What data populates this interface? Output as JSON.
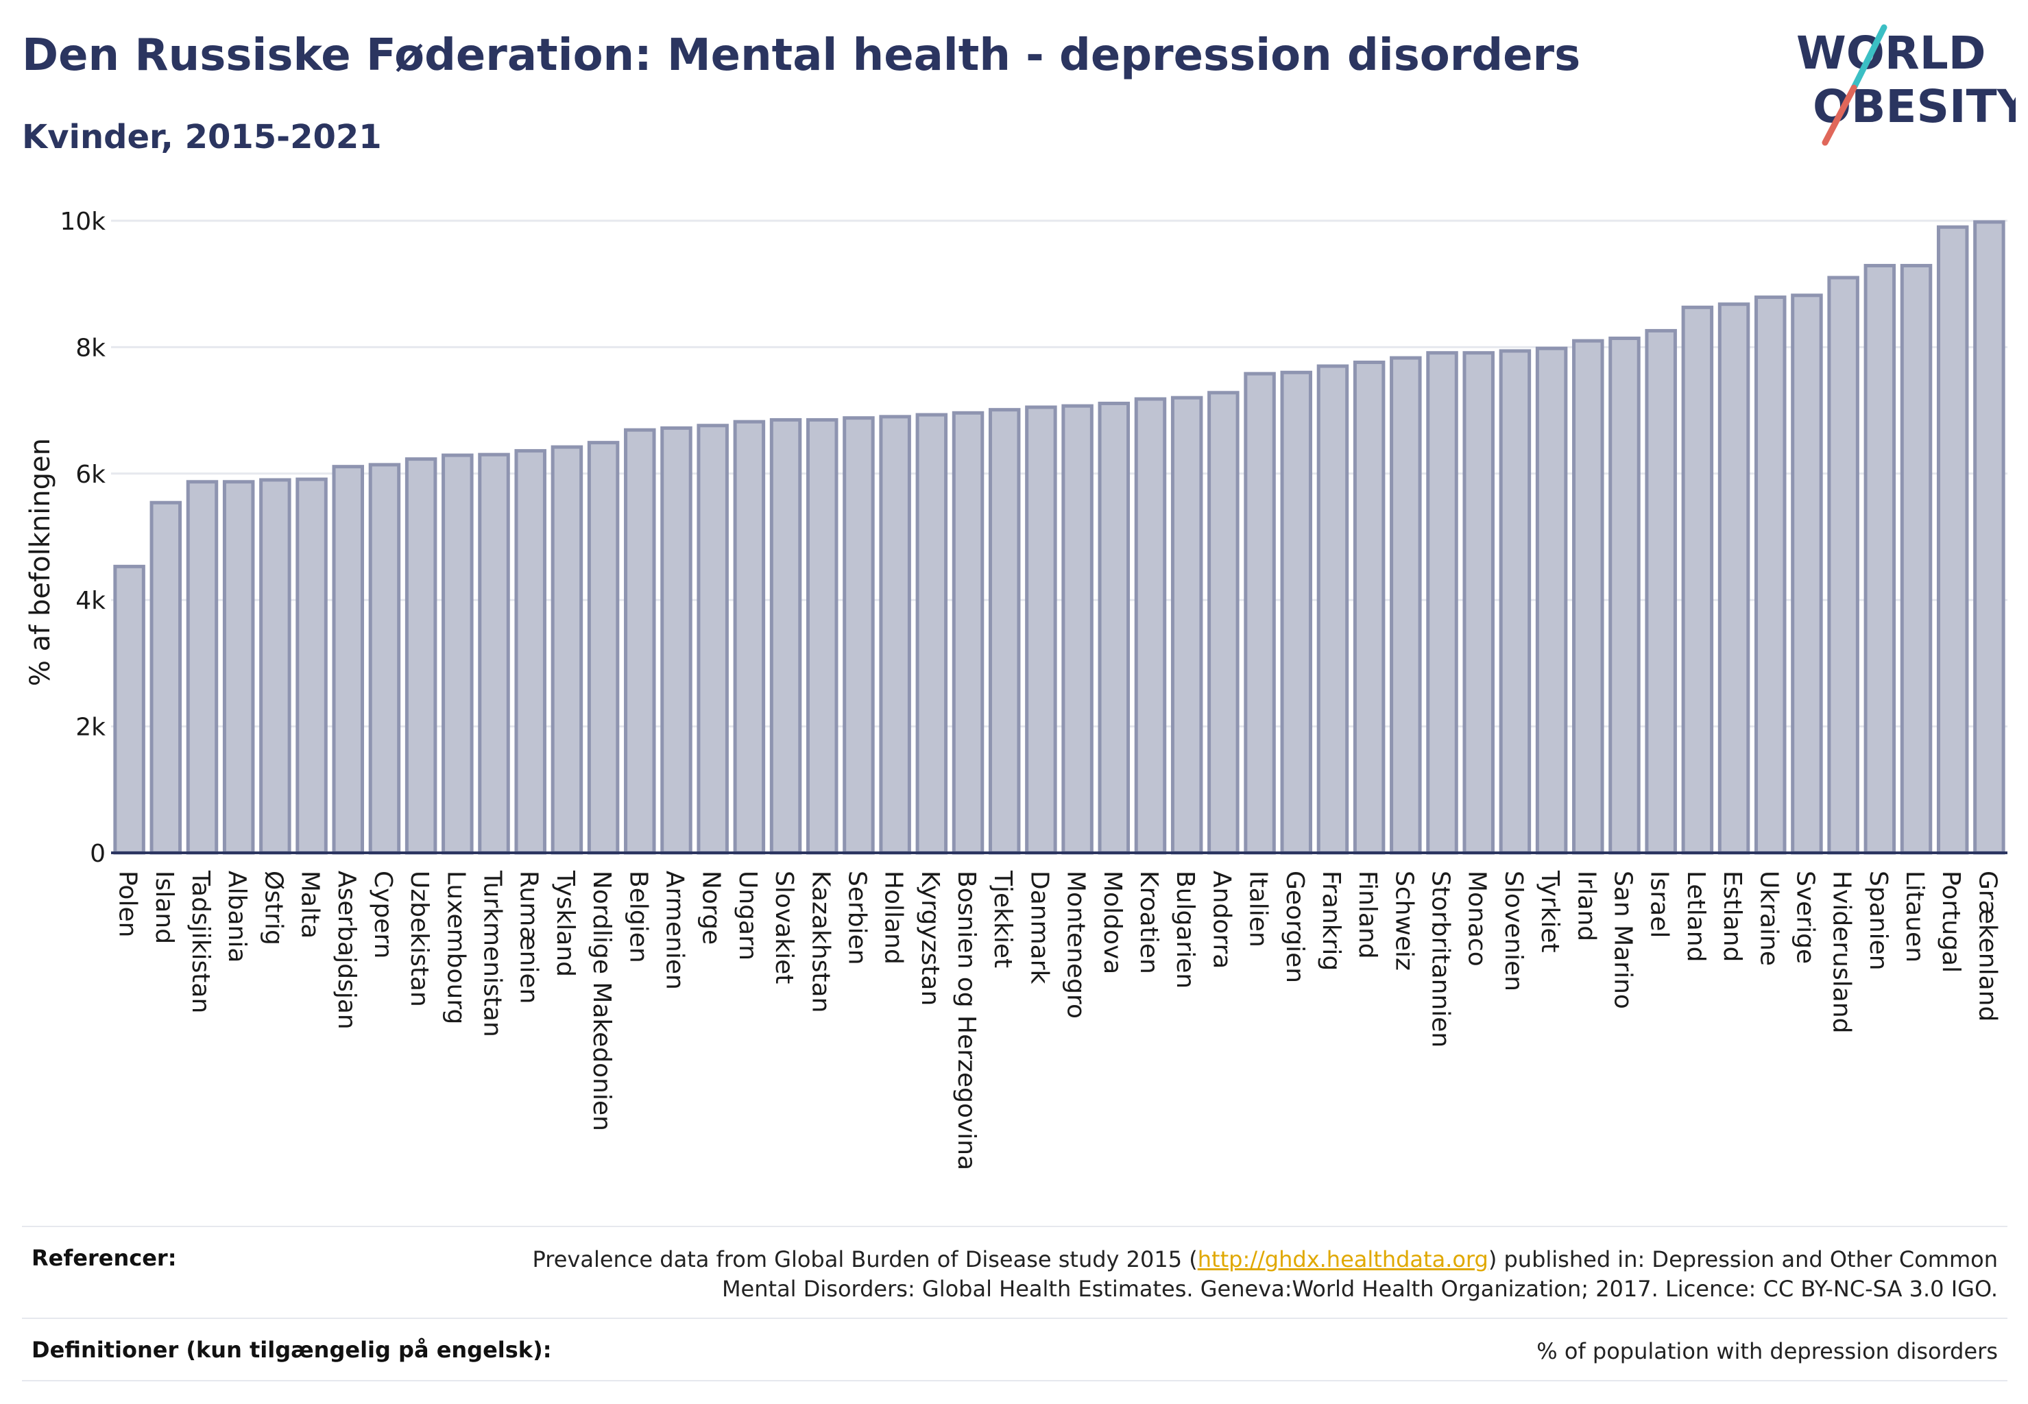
{
  "header": {
    "title": "Den Russiske Føderation: Mental health - depression disorders",
    "subtitle": "Kvinder, 2015-2021"
  },
  "logo": {
    "line1": "WORLD",
    "line2": "OBESITY",
    "colors": {
      "text": "#2b3560",
      "teal": "#3bbfc4",
      "coral": "#e0675a"
    }
  },
  "colors": {
    "bar_fill": "#bfc3d2",
    "bar_stroke": "#8e94b0",
    "grid": "#e6e8ee",
    "axis": "#2b3560"
  },
  "chart_data": {
    "type": "bar",
    "ylabel": "% af befolkningen",
    "ylim": [
      0,
      10000
    ],
    "yticks": [
      0,
      2000,
      4000,
      6000,
      8000,
      10000
    ],
    "ytick_labels": [
      "0",
      "2k",
      "4k",
      "6k",
      "8k",
      "10k"
    ],
    "grid": true,
    "categories": [
      "Polen",
      "Island",
      "Tadsjikistan",
      "Albania",
      "Østrig",
      "Malta",
      "Aserbajdsjan",
      "Cypern",
      "Uzbekistan",
      "Luxembourg",
      "Turkmenistan",
      "Rumænien",
      "Tyskland",
      "Nordlige Makedonien",
      "Belgien",
      "Armenien",
      "Norge",
      "Ungarn",
      "Slovakiet",
      "Kazakhstan",
      "Serbien",
      "Holland",
      "Kyrgyzstan",
      "Bosnien og Herzegovina",
      "Tjekkiet",
      "Danmark",
      "Montenegro",
      "Moldova",
      "Kroatien",
      "Bulgarien",
      "Andorra",
      "Italien",
      "Georgien",
      "Frankrig",
      "Finland",
      "Schweiz",
      "Storbritannien",
      "Monaco",
      "Slovenien",
      "Tyrkiet",
      "Irland",
      "San Marino",
      "Israel",
      "Letland",
      "Estland",
      "Ukraine",
      "Sverige",
      "Hviderusland",
      "Spanien",
      "Litauen",
      "Portugal",
      "Grækenland"
    ],
    "values": [
      4530,
      5540,
      5870,
      5870,
      5900,
      5910,
      6110,
      6140,
      6230,
      6290,
      6300,
      6360,
      6420,
      6490,
      6690,
      6720,
      6760,
      6820,
      6850,
      6850,
      6880,
      6900,
      6930,
      6960,
      7010,
      7050,
      7070,
      7110,
      7180,
      7200,
      7280,
      7580,
      7600,
      7700,
      7760,
      7830,
      7910,
      7910,
      7940,
      7980,
      8100,
      8140,
      8260,
      8630,
      8680,
      8790,
      8820,
      9100,
      9290,
      9290,
      9900,
      9980
    ]
  },
  "references": {
    "label": "Referencer:",
    "text_before": "Prevalence data from Global Burden of Disease study 2015 (",
    "link": "http://ghdx.healthdata.org",
    "text_after": ") published in: Depression and Other Common Mental Disorders: Global Health Estimates. Geneva:World Health Organization; 2017. Licence: CC BY-NC-SA 3.0 IGO."
  },
  "definitions": {
    "label": "Definitioner (kun tilgængelig på engelsk):",
    "text": "% of population with depression disorders"
  }
}
